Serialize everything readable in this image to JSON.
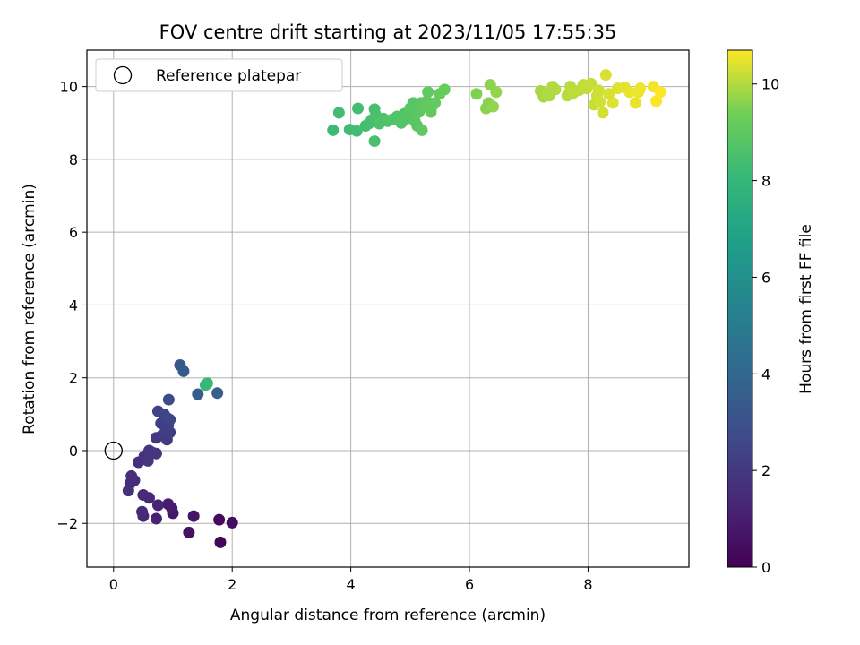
{
  "chart_data": {
    "type": "scatter",
    "title": "FOV centre drift starting at 2023/11/05 17:55:35",
    "xlabel": "Angular distance from reference (arcmin)",
    "ylabel": "Rotation from reference (arcmin)",
    "xlim": [
      -0.45,
      9.7
    ],
    "ylim": [
      -3.2,
      11.0
    ],
    "xticks": [
      0,
      2,
      4,
      6,
      8
    ],
    "yticks": [
      -2,
      0,
      2,
      4,
      6,
      8,
      10
    ],
    "grid": true,
    "colorbar": {
      "label": "Hours from first FF file",
      "colormap": "viridis",
      "range": [
        0,
        10.7
      ],
      "ticks": [
        0,
        2,
        4,
        6,
        8,
        10
      ]
    },
    "legend": {
      "placement": "top-left",
      "entries": [
        "Reference platepar"
      ]
    },
    "reference_point": {
      "x": 0,
      "y": 0
    },
    "points": [
      [
        1.8,
        -2.52,
        0.2
      ],
      [
        1.78,
        -1.9,
        0.3
      ],
      [
        2.0,
        -1.98,
        0.4
      ],
      [
        1.27,
        -2.25,
        0.6
      ],
      [
        1.35,
        -1.8,
        0.7
      ],
      [
        1.0,
        -1.72,
        0.8
      ],
      [
        0.98,
        -1.58,
        0.9
      ],
      [
        0.92,
        -1.47,
        1.0
      ],
      [
        0.72,
        -1.87,
        1.1
      ],
      [
        0.75,
        -1.5,
        1.2
      ],
      [
        0.5,
        -1.8,
        1.3
      ],
      [
        0.48,
        -1.68,
        1.35
      ],
      [
        0.6,
        -1.3,
        1.4
      ],
      [
        0.5,
        -1.22,
        1.45
      ],
      [
        0.35,
        -0.82,
        1.5
      ],
      [
        0.28,
        -0.9,
        1.55
      ],
      [
        0.25,
        -1.1,
        1.6
      ],
      [
        0.3,
        -0.7,
        1.65
      ],
      [
        0.42,
        -0.32,
        1.7
      ],
      [
        0.52,
        -0.15,
        1.75
      ],
      [
        0.58,
        -0.28,
        1.8
      ],
      [
        0.65,
        -0.05,
        1.85
      ],
      [
        0.72,
        -0.08,
        1.9
      ],
      [
        0.6,
        0.0,
        1.95
      ],
      [
        0.72,
        0.35,
        2.0
      ],
      [
        0.82,
        0.42,
        2.05
      ],
      [
        0.9,
        0.3,
        2.1
      ],
      [
        0.95,
        0.5,
        2.15
      ],
      [
        0.88,
        0.55,
        2.2
      ],
      [
        0.8,
        0.75,
        2.25
      ],
      [
        0.92,
        0.7,
        2.3
      ],
      [
        0.9,
        0.9,
        2.35
      ],
      [
        0.85,
        1.0,
        2.4
      ],
      [
        0.75,
        1.08,
        2.45
      ],
      [
        0.95,
        0.85,
        2.5
      ],
      [
        0.93,
        1.4,
        2.7
      ],
      [
        1.12,
        2.35,
        3.3
      ],
      [
        1.18,
        2.18,
        3.4
      ],
      [
        1.42,
        1.55,
        3.5
      ],
      [
        1.75,
        1.58,
        3.6
      ],
      [
        1.55,
        1.8,
        8.0
      ],
      [
        1.58,
        1.85,
        8.1
      ],
      [
        3.7,
        8.8,
        8.2
      ],
      [
        3.8,
        9.28,
        8.3
      ],
      [
        3.98,
        8.82,
        8.3
      ],
      [
        4.1,
        8.78,
        8.35
      ],
      [
        4.12,
        9.4,
        8.4
      ],
      [
        4.25,
        8.92,
        8.4
      ],
      [
        4.3,
        8.98,
        8.45
      ],
      [
        4.35,
        9.08,
        8.5
      ],
      [
        4.4,
        9.38,
        8.5
      ],
      [
        4.42,
        9.22,
        8.55
      ],
      [
        4.4,
        8.5,
        8.55
      ],
      [
        4.48,
        8.98,
        8.6
      ],
      [
        4.55,
        9.12,
        8.6
      ],
      [
        4.62,
        9.05,
        8.65
      ],
      [
        4.7,
        9.1,
        8.7
      ],
      [
        4.78,
        9.18,
        8.7
      ],
      [
        4.85,
        9.0,
        8.75
      ],
      [
        4.9,
        9.25,
        8.75
      ],
      [
        4.92,
        9.1,
        8.8
      ],
      [
        4.98,
        9.2,
        8.8
      ],
      [
        5.0,
        9.4,
        8.85
      ],
      [
        5.05,
        9.55,
        8.85
      ],
      [
        5.08,
        9.05,
        8.9
      ],
      [
        5.12,
        8.92,
        8.9
      ],
      [
        5.15,
        9.3,
        8.95
      ],
      [
        5.18,
        9.55,
        8.95
      ],
      [
        5.2,
        8.8,
        9.0
      ],
      [
        5.25,
        9.45,
        9.0
      ],
      [
        5.28,
        9.6,
        9.05
      ],
      [
        5.3,
        9.85,
        9.05
      ],
      [
        5.35,
        9.3,
        9.1
      ],
      [
        5.38,
        9.48,
        9.1
      ],
      [
        5.42,
        9.55,
        9.15
      ],
      [
        5.5,
        9.8,
        9.2
      ],
      [
        5.58,
        9.92,
        9.2
      ],
      [
        6.12,
        9.8,
        9.5
      ],
      [
        6.28,
        9.4,
        9.6
      ],
      [
        6.32,
        9.55,
        9.6
      ],
      [
        6.35,
        10.05,
        9.65
      ],
      [
        6.4,
        9.45,
        9.7
      ],
      [
        6.45,
        9.85,
        9.7
      ],
      [
        7.2,
        9.88,
        9.9
      ],
      [
        7.25,
        9.72,
        9.9
      ],
      [
        7.3,
        9.8,
        9.95
      ],
      [
        7.35,
        9.75,
        9.95
      ],
      [
        7.4,
        10.0,
        10.0
      ],
      [
        7.45,
        9.92,
        10.0
      ],
      [
        7.65,
        9.75,
        10.05
      ],
      [
        7.7,
        10.0,
        10.05
      ],
      [
        7.75,
        9.82,
        10.1
      ],
      [
        7.85,
        9.9,
        10.1
      ],
      [
        7.92,
        10.05,
        10.15
      ],
      [
        7.98,
        9.95,
        10.15
      ],
      [
        8.05,
        10.08,
        10.2
      ],
      [
        8.1,
        9.5,
        10.2
      ],
      [
        8.15,
        9.75,
        10.25
      ],
      [
        8.18,
        9.9,
        10.25
      ],
      [
        8.2,
        9.58,
        10.3
      ],
      [
        8.25,
        9.28,
        10.3
      ],
      [
        8.3,
        10.32,
        10.35
      ],
      [
        8.35,
        9.8,
        10.35
      ],
      [
        8.42,
        9.55,
        10.4
      ],
      [
        8.5,
        9.95,
        10.4
      ],
      [
        8.62,
        9.98,
        10.45
      ],
      [
        8.7,
        9.85,
        10.5
      ],
      [
        8.8,
        9.55,
        10.5
      ],
      [
        8.85,
        9.85,
        10.55
      ],
      [
        8.88,
        9.95,
        10.55
      ],
      [
        9.1,
        10.0,
        10.6
      ],
      [
        9.15,
        9.6,
        10.65
      ],
      [
        9.22,
        9.85,
        10.7
      ]
    ]
  }
}
